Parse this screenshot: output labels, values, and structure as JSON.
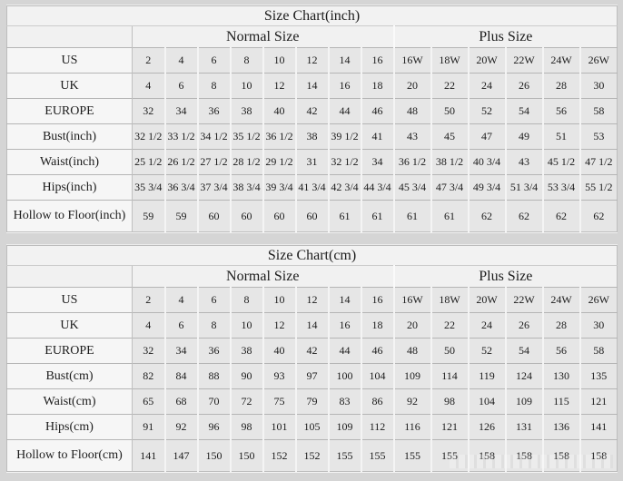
{
  "page": {
    "background": "#d5d5d5"
  },
  "colors": {
    "title_bg": "#f2f2f2",
    "label_column_bg": "#f6f6f6",
    "data_cell_bg": "#e6e6e6",
    "grid_line": "#b5b5b5",
    "text": "#1c1c1c"
  },
  "chart_data": [
    {
      "type": "table",
      "title": "Size Chart(inch)",
      "column_groups": [
        {
          "label": "",
          "span": 1
        },
        {
          "label": "Normal Size",
          "span": 8
        },
        {
          "label": "Plus Size",
          "span": 6
        }
      ],
      "rows": [
        {
          "label": "US",
          "normal": [
            "2",
            "4",
            "6",
            "8",
            "10",
            "12",
            "14",
            "16"
          ],
          "plus": [
            "16W",
            "18W",
            "20W",
            "22W",
            "24W",
            "26W"
          ]
        },
        {
          "label": "UK",
          "normal": [
            "4",
            "6",
            "8",
            "10",
            "12",
            "14",
            "16",
            "18"
          ],
          "plus": [
            "20",
            "22",
            "24",
            "26",
            "28",
            "30"
          ]
        },
        {
          "label": "EUROPE",
          "normal": [
            "32",
            "34",
            "36",
            "38",
            "40",
            "42",
            "44",
            "46"
          ],
          "plus": [
            "48",
            "50",
            "52",
            "54",
            "56",
            "58"
          ]
        },
        {
          "label": "Bust(inch)",
          "normal": [
            "32 1/2",
            "33 1/2",
            "34 1/2",
            "35 1/2",
            "36 1/2",
            "38",
            "39 1/2",
            "41"
          ],
          "plus": [
            "43",
            "45",
            "47",
            "49",
            "51",
            "53"
          ]
        },
        {
          "label": "Waist(inch)",
          "normal": [
            "25 1/2",
            "26 1/2",
            "27 1/2",
            "28 1/2",
            "29 1/2",
            "31",
            "32 1/2",
            "34"
          ],
          "plus": [
            "36 1/2",
            "38 1/2",
            "40 3/4",
            "43",
            "45 1/2",
            "47 1/2"
          ]
        },
        {
          "label": "Hips(inch)",
          "normal": [
            "35 3/4",
            "36 3/4",
            "37 3/4",
            "38 3/4",
            "39 3/4",
            "41 3/4",
            "42 3/4",
            "44 3/4"
          ],
          "plus": [
            "45 3/4",
            "47 3/4",
            "49 3/4",
            "51 3/4",
            "53 3/4",
            "55 1/2"
          ]
        },
        {
          "label": "Hollow to Floor(inch)",
          "normal": [
            "59",
            "59",
            "60",
            "60",
            "60",
            "60",
            "61",
            "61"
          ],
          "plus": [
            "61",
            "61",
            "62",
            "62",
            "62",
            "62"
          ]
        }
      ]
    },
    {
      "type": "table",
      "title": "Size Chart(cm)",
      "column_groups": [
        {
          "label": "",
          "span": 1
        },
        {
          "label": "Normal Size",
          "span": 8
        },
        {
          "label": "Plus Size",
          "span": 6
        }
      ],
      "rows": [
        {
          "label": "US",
          "normal": [
            "2",
            "4",
            "6",
            "8",
            "10",
            "12",
            "14",
            "16"
          ],
          "plus": [
            "16W",
            "18W",
            "20W",
            "22W",
            "24W",
            "26W"
          ]
        },
        {
          "label": "UK",
          "normal": [
            "4",
            "6",
            "8",
            "10",
            "12",
            "14",
            "16",
            "18"
          ],
          "plus": [
            "20",
            "22",
            "24",
            "26",
            "28",
            "30"
          ]
        },
        {
          "label": "EUROPE",
          "normal": [
            "32",
            "34",
            "36",
            "38",
            "40",
            "42",
            "44",
            "46"
          ],
          "plus": [
            "48",
            "50",
            "52",
            "54",
            "56",
            "58"
          ]
        },
        {
          "label": "Bust(cm)",
          "normal": [
            "82",
            "84",
            "88",
            "90",
            "93",
            "97",
            "100",
            "104"
          ],
          "plus": [
            "109",
            "114",
            "119",
            "124",
            "130",
            "135"
          ]
        },
        {
          "label": "Waist(cm)",
          "normal": [
            "65",
            "68",
            "70",
            "72",
            "75",
            "79",
            "83",
            "86"
          ],
          "plus": [
            "92",
            "98",
            "104",
            "109",
            "115",
            "121"
          ]
        },
        {
          "label": "Hips(cm)",
          "normal": [
            "91",
            "92",
            "96",
            "98",
            "101",
            "105",
            "109",
            "112"
          ],
          "plus": [
            "116",
            "121",
            "126",
            "131",
            "136",
            "141"
          ]
        },
        {
          "label": "Hollow to Floor(cm)",
          "normal": [
            "141",
            "147",
            "150",
            "150",
            "152",
            "152",
            "155",
            "155"
          ],
          "plus": [
            "155",
            "155",
            "158",
            "158",
            "158",
            "158"
          ]
        }
      ]
    }
  ]
}
